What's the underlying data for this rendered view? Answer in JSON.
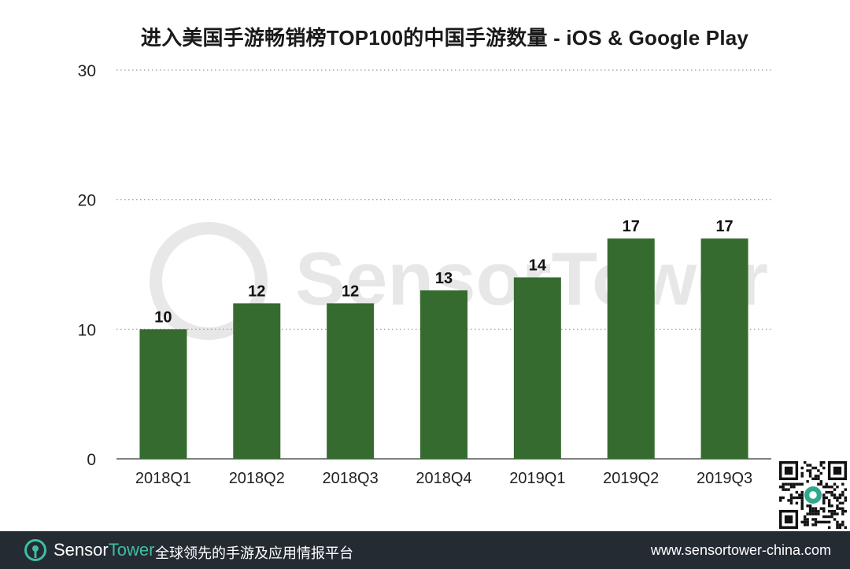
{
  "chart_data": {
    "type": "bar",
    "title": "进入美国手游畅销榜TOP100的中国手游数量 - iOS & Google Play",
    "categories": [
      "2018Q1",
      "2018Q2",
      "2018Q3",
      "2018Q4",
      "2019Q1",
      "2019Q2",
      "2019Q3"
    ],
    "values": [
      10,
      12,
      12,
      13,
      14,
      17,
      17
    ],
    "ylim": [
      0,
      30
    ],
    "yticks": [
      0,
      10,
      20,
      30
    ],
    "grid": true,
    "data_labels": true,
    "bar_color": "#356b2f"
  },
  "watermark": {
    "text": "SensorTower"
  },
  "footer": {
    "brand_sensor": "Sensor",
    "brand_tower": "Tower",
    "slogan": "全球领先的手游及应用情报平台",
    "url": "www.sensortower-china.com",
    "bg_color": "#252b33",
    "accent_color": "#3fbf9f"
  },
  "qr_code": {
    "icon": "qr-code-icon"
  }
}
